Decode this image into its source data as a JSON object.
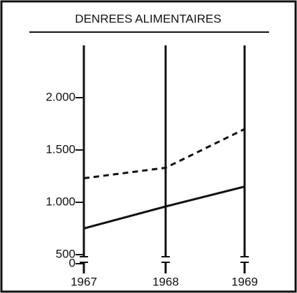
{
  "chart_data": {
    "type": "line",
    "title": "DENREES ALIMENTAIRES",
    "categories": [
      "1967",
      "1968",
      "1969"
    ],
    "series": [
      {
        "color": "#111111",
        "dash": "solid",
        "values": [
          750,
          960,
          1150
        ]
      },
      {
        "color": "#111111",
        "dash": "dashed",
        "values": [
          1230,
          1330,
          1700
        ]
      }
    ],
    "ylim": [
      500,
      2500
    ],
    "yticks": [
      0,
      500,
      {
        "value": 1000,
        "label": "1.000"
      },
      {
        "value": 1500,
        "label": "1.500"
      },
      {
        "value": 2000,
        "label": "2.000"
      }
    ],
    "axis_break": true
  }
}
